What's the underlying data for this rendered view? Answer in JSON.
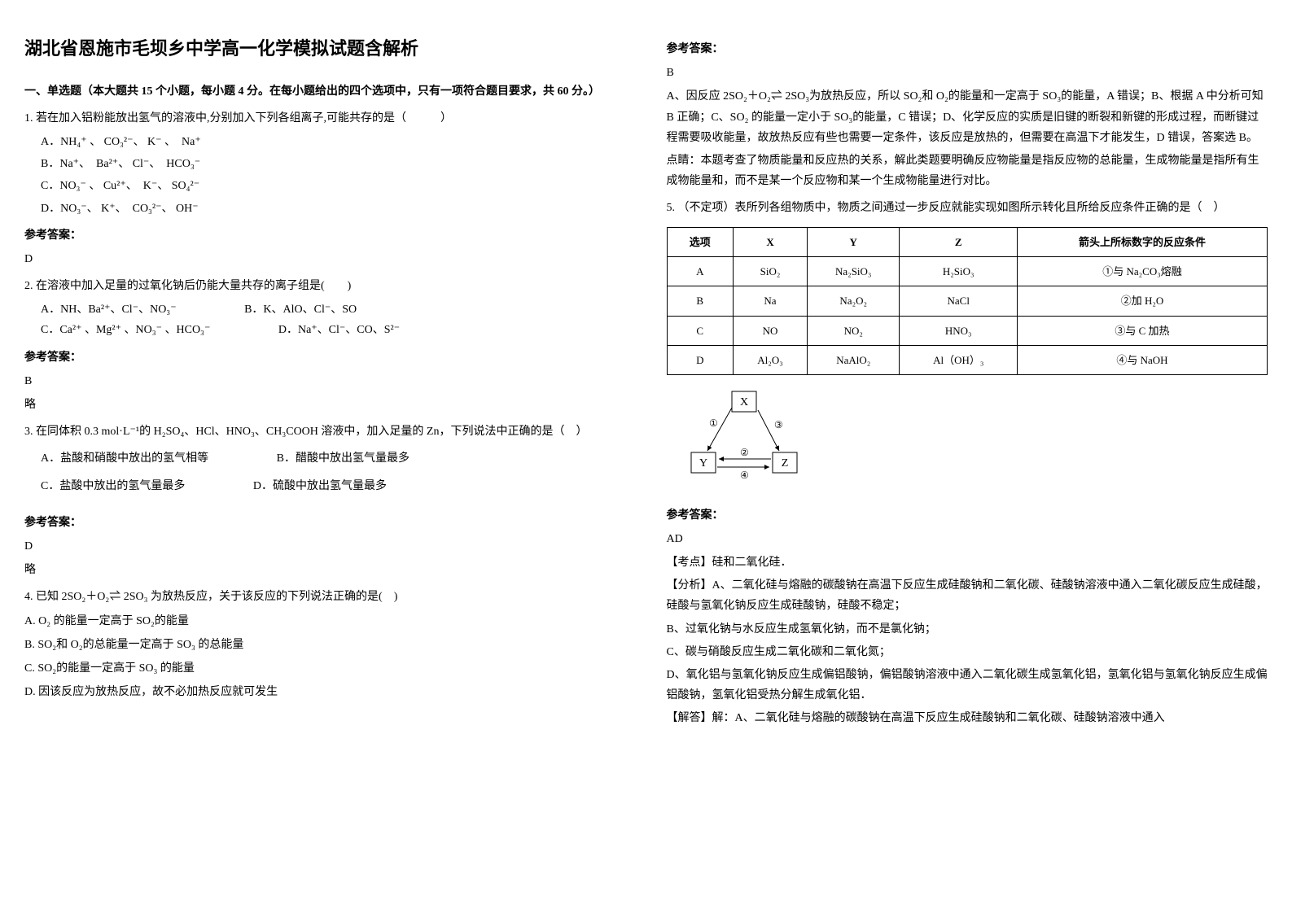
{
  "title": "湖北省恩施市毛坝乡中学高一化学模拟试题含解析",
  "section1_title": "一、单选题（本大题共 15 个小题，每小题 4 分。在每小题给出的四个选项中，只有一项符合题目要求，共 60 分。）",
  "q1": {
    "text": "1. 若在加入铝粉能放出氢气的溶液中,分别加入下列各组离子,可能共存的是（　　　）",
    "a": "A．NH₄⁺ 、 CO₃²⁻、 K⁻ 、　Na⁺",
    "b": "B．Na⁺、　Ba²⁺、 Cl⁻、　HCO₃⁻",
    "c": "C．NO₃⁻ 、 Cu²⁺、　K⁻、 SO₄²⁻",
    "d": "D．NO₃⁻、 K⁺、　CO₃²⁻、 OH⁻"
  },
  "q1_answer_label": "参考答案：",
  "q1_answer": "D",
  "q2": {
    "text": "2. 在溶液中加入足量的过氧化钠后仍能大量共存的离子组是(　　)",
    "a": "A．NH、Ba²⁺、Cl⁻、NO₃⁻",
    "b": "B．K、AlO、Cl⁻、SO",
    "c": "C．Ca²⁺ 、Mg²⁺ 、NO₃⁻ 、HCO₃⁻",
    "d": "D．Na⁺、Cl⁻、CO、S²⁻"
  },
  "q2_answer_label": "参考答案：",
  "q2_answer": "B",
  "q2_note": "略",
  "q3": {
    "text": "3. 在同体积 0.3 mol·L⁻¹的 H₂SO₄、HCl、HNO₃、CH₃COOH 溶液中，加入足量的 Zn，下列说法中正确的是（　）",
    "a": "A．盐酸和硝酸中放出的氢气相等",
    "b": "B．醋酸中放出氢气量最多",
    "c": "C．盐酸中放出的氢气量最多",
    "d": "D．硫酸中放出氢气量最多"
  },
  "q3_answer_label": "参考答案：",
  "q3_answer": "D",
  "q3_note": "略",
  "q4": {
    "text": "4. 已知 2SO₂＋O₂⇌ 2SO₃ 为放热反应，关于该反应的下列说法正确的是(　)",
    "a": "A. O₂ 的能量一定高于 SO₂的能量",
    "b": "B. SO₂和 O₂的总能量一定高于 SO₃ 的总能量",
    "c": "C. SO₂的能量一定高于 SO₃ 的能量",
    "d": "D. 因该反应为放热反应，故不必加热反应就可发生"
  },
  "q4_answer_label": "参考答案：",
  "q4_answer": "B",
  "q4_explain1": "A、因反应 2SO₂＋O₂⇌ 2SO₃为放热反应，所以 SO₂和 O₂的能量和一定高于 SO₃的能量，A 错误；B、根据 A 中分析可知 B 正确；C、SO₂ 的能量一定小于 SO₃的能量，C 错误；D、化学反应的实质是旧键的断裂和新键的形成过程，而断键过程需要吸收能量，故放热反应有些也需要一定条件，该反应是放热的，但需要在高温下才能发生，D 错误，答案选 B。",
  "q4_explain2": "点睛：本题考查了物质能量和反应热的关系，解此类题要明确反应物能量是指反应物的总能量，生成物能量是指所有生成物能量和，而不是某一个反应物和某一个生成物能量进行对比。",
  "q5": {
    "text": "5. （不定项）表所列各组物质中，物质之间通过一步反应就能实现如图所示转化且所给反应条件正确的是（　）",
    "table": {
      "headers": [
        "选项",
        "X",
        "Y",
        "Z",
        "箭头上所标数字的反应条件"
      ],
      "rows": [
        [
          "A",
          "SiO₂",
          "Na₂SiO₃",
          "H₂SiO₃",
          "①与 Na₂CO₃熔融"
        ],
        [
          "B",
          "Na",
          "Na₂O₂",
          "NaCl",
          "②加 H₂O"
        ],
        [
          "C",
          "NO",
          "NO₂",
          "HNO₃",
          "③与 C 加热"
        ],
        [
          "D",
          "Al₂O₃",
          "NaAlO₂",
          "Al（OH）₃",
          "④与 NaOH"
        ]
      ]
    }
  },
  "diagram": {
    "nodes": {
      "X": "X",
      "Y": "Y",
      "Z": "Z"
    },
    "edge_labels": {
      "1": "①",
      "2": "②",
      "3": "③",
      "4": "④"
    }
  },
  "q5_answer_label": "参考答案：",
  "q5_answer": "AD",
  "q5_point": "【考点】硅和二氧化硅．",
  "q5_analysis": "【分析】A、二氧化硅与熔融的碳酸钠在高温下反应生成硅酸钠和二氧化碳、硅酸钠溶液中通入二氧化碳反应生成硅酸，硅酸与氢氧化钠反应生成硅酸钠，硅酸不稳定；",
  "q5_b": "B、过氧化钠与水反应生成氢氧化钠，而不是氯化钠；",
  "q5_c": "C、碳与硝酸反应生成二氧化碳和二氧化氮；",
  "q5_d": "D、氧化铝与氢氧化钠反应生成偏铝酸钠，偏铝酸钠溶液中通入二氧化碳生成氢氧化铝，氢氧化铝与氢氧化钠反应生成偏铝酸钠，氢氧化铝受热分解生成氧化铝．",
  "q5_solve": "【解答】解：A、二氧化硅与熔融的碳酸钠在高温下反应生成硅酸钠和二氧化碳、硅酸钠溶液中通入"
}
